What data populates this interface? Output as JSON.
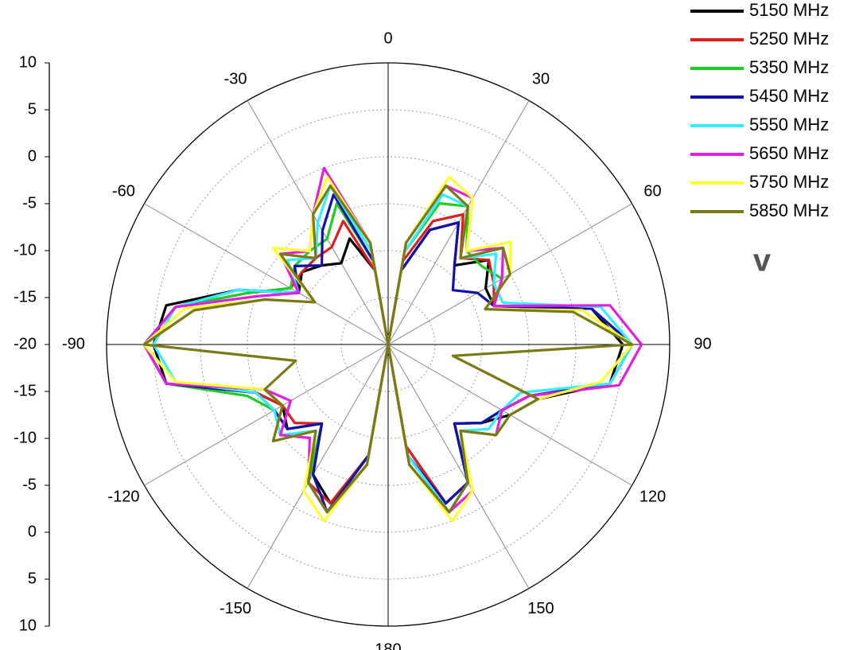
{
  "chart_data": {
    "type": "polar",
    "theta": [
      -180,
      -170,
      -160,
      -150,
      -140,
      -130,
      -120,
      -110,
      -100,
      -90,
      -80,
      -70,
      -60,
      -50,
      -40,
      -30,
      -20,
      -10,
      0,
      10,
      20,
      30,
      40,
      50,
      60,
      70,
      80,
      90,
      100,
      110,
      120,
      130,
      140,
      150,
      160,
      170
    ],
    "rlim": [
      -20,
      10
    ],
    "rticks": [
      -20,
      -15,
      -10,
      -5,
      0,
      5,
      10
    ],
    "thetaticks": [
      0,
      30,
      60,
      90,
      120,
      150,
      180,
      -150,
      -120,
      -90,
      -60,
      -30
    ],
    "grid": true,
    "annotation": "v",
    "series": [
      {
        "name": "5150 MHz",
        "color": "#000000",
        "values": [
          -20,
          -8,
          -2,
          -4,
          -9,
          -6,
          -7,
          -5,
          4,
          5,
          4,
          -3,
          -9,
          -8,
          -9,
          -10,
          -8,
          -12,
          -20,
          -12,
          -7,
          -5,
          -9,
          -6,
          -8,
          -8,
          2,
          5,
          4,
          -3,
          -5,
          -7,
          -9,
          -3,
          -2,
          -9
        ]
      },
      {
        "name": "5250 MHz",
        "color": "#dd1f1f",
        "values": [
          -20,
          -8,
          -2,
          -3,
          -9,
          -7,
          -7,
          -5,
          4,
          6,
          3,
          -4,
          -8,
          -8,
          -8,
          -8,
          -6,
          -12,
          -20,
          -11,
          -6,
          -4,
          -8,
          -6,
          -7,
          -8,
          2,
          6,
          4,
          -4,
          -6,
          -7,
          -9,
          -3,
          -2,
          -9
        ]
      },
      {
        "name": "5350 MHz",
        "color": "#22cc22",
        "values": [
          -20,
          -8,
          -1,
          -3,
          -9,
          -6,
          -6,
          -4,
          4,
          6,
          3,
          -4,
          -8,
          -7,
          -7,
          -7,
          -4,
          -11,
          -20,
          -10,
          -4,
          -3,
          -7,
          -7,
          -6,
          -8,
          2,
          6,
          4,
          -4,
          -6,
          -7,
          -9,
          -3,
          -1,
          -8
        ]
      },
      {
        "name": "5450 MHz",
        "color": "#1212aa",
        "values": [
          -20,
          -8,
          -1,
          -4,
          -9,
          -6,
          -6,
          -5,
          4,
          6,
          3,
          -3,
          -9,
          -7,
          -9,
          -6,
          -3,
          -11,
          -20,
          -12,
          -7,
          -5,
          -9,
          -11,
          -9,
          -8,
          2,
          6,
          4,
          -4,
          -6,
          -7,
          -9,
          -3,
          -2,
          -8
        ]
      },
      {
        "name": "5550 MHz",
        "color": "#33eeff",
        "values": [
          -20,
          -7,
          -1,
          -3,
          -8,
          -5,
          -6,
          -5,
          3,
          5,
          3,
          -3,
          -9,
          -6,
          -8,
          -5,
          -2,
          -10,
          -20,
          -10,
          -3,
          -3,
          -8,
          -5,
          -7,
          -7,
          3,
          6,
          4,
          -5,
          -6,
          -6,
          -8,
          -3,
          -1,
          -8
        ]
      },
      {
        "name": "5650 MHz",
        "color": "#e020e0",
        "values": [
          -20,
          -7,
          -1,
          -3,
          -7,
          -5,
          -8,
          -6,
          4,
          6,
          3,
          -5,
          -9,
          -5,
          -7,
          -4,
          0,
          -9,
          -20,
          -9,
          -2,
          -2,
          -7,
          -4,
          -6,
          -8,
          4,
          7,
          5,
          -4,
          -6,
          -5,
          -8,
          -2,
          -1,
          -7
        ]
      },
      {
        "name": "5750 MHz",
        "color": "#ffff33",
        "values": [
          -20,
          -7,
          0,
          -2,
          -8,
          -4,
          -7,
          -6,
          3,
          6,
          2,
          -6,
          -11,
          -4,
          -7,
          -4,
          -1,
          -9,
          -20,
          -9,
          -1,
          -2,
          -7,
          -3,
          -5,
          -9,
          1,
          6,
          3,
          -3,
          -5,
          -5,
          -8,
          -2,
          0,
          -7
        ]
      },
      {
        "name": "5850 MHz",
        "color": "#7a7a14",
        "values": [
          -20,
          -7,
          -1,
          -3,
          -8,
          -4,
          -7,
          -6,
          -10,
          6,
          1,
          -6,
          -11,
          -5,
          -8,
          -4,
          -2,
          -9,
          -20,
          -9,
          -2,
          -3,
          -8,
          -4,
          -5,
          -9,
          0,
          6,
          -13,
          -3,
          -5,
          -5,
          -8,
          -3,
          -1,
          -7
        ]
      }
    ]
  }
}
